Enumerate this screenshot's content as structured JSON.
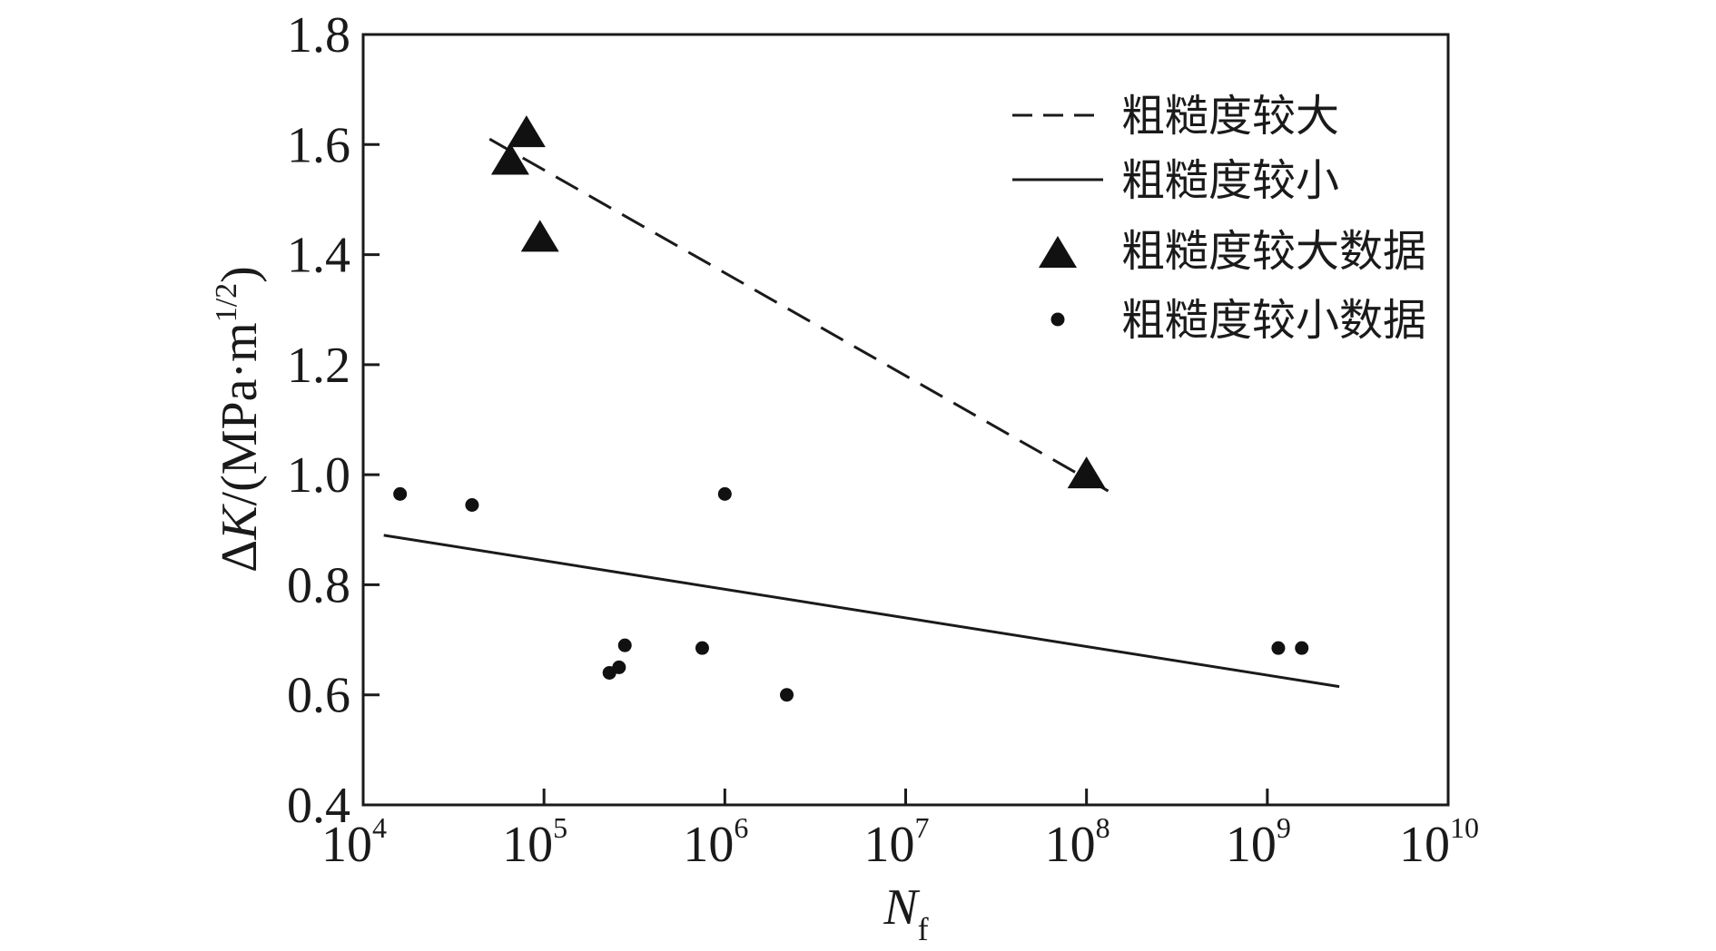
{
  "chart_data": {
    "type": "scatter",
    "title": "",
    "xlabel": {
      "base": "N",
      "sub": "f"
    },
    "ylabel": {
      "main": "ΔK/(MPa·m",
      "sup": "1/2",
      "close": ")"
    },
    "x_scale": "log",
    "xlim": [
      10000,
      10000000000
    ],
    "ylim": [
      0.4,
      1.8
    ],
    "x_ticks": [
      {
        "base": "10",
        "exp": "4",
        "value": 10000
      },
      {
        "base": "10",
        "exp": "5",
        "value": 100000
      },
      {
        "base": "10",
        "exp": "6",
        "value": 1000000
      },
      {
        "base": "10",
        "exp": "7",
        "value": 10000000
      },
      {
        "base": "10",
        "exp": "8",
        "value": 100000000
      },
      {
        "base": "10",
        "exp": "9",
        "value": 1000000000
      },
      {
        "base": "10",
        "exp": "10",
        "value": 10000000000
      }
    ],
    "y_ticks": [
      "0.4",
      "0.6",
      "0.8",
      "1.0",
      "1.2",
      "1.4",
      "1.6",
      "1.8"
    ],
    "grid": false,
    "legend_position": "top-right",
    "series": [
      {
        "name": "粗糙度较大",
        "kind": "line",
        "style": "dashed",
        "color": "#1a1a1a",
        "points": [
          {
            "x": 50000,
            "y": 1.61
          },
          {
            "x": 150000000,
            "y": 0.96
          }
        ]
      },
      {
        "name": "粗糙度较小",
        "kind": "line",
        "style": "solid",
        "color": "#1a1a1a",
        "points": [
          {
            "x": 13000,
            "y": 0.89
          },
          {
            "x": 2500000000,
            "y": 0.615
          }
        ]
      },
      {
        "name": "粗糙度较大数据",
        "kind": "scatter",
        "marker": "triangle",
        "color": "#111111",
        "points": [
          {
            "x": 65000,
            "y": 1.57
          },
          {
            "x": 80000,
            "y": 1.62
          },
          {
            "x": 95000,
            "y": 1.43
          },
          {
            "x": 100000000,
            "y": 1.0
          }
        ]
      },
      {
        "name": "粗糙度较小数据",
        "kind": "scatter",
        "marker": "circle",
        "color": "#111111",
        "points": [
          {
            "x": 16000,
            "y": 0.965
          },
          {
            "x": 40000,
            "y": 0.945
          },
          {
            "x": 230000,
            "y": 0.64
          },
          {
            "x": 260000,
            "y": 0.65
          },
          {
            "x": 280000,
            "y": 0.69
          },
          {
            "x": 750000,
            "y": 0.685
          },
          {
            "x": 1000000,
            "y": 0.965
          },
          {
            "x": 2200000,
            "y": 0.6
          },
          {
            "x": 1150000000,
            "y": 0.685
          },
          {
            "x": 1550000000,
            "y": 0.685
          }
        ]
      }
    ]
  }
}
